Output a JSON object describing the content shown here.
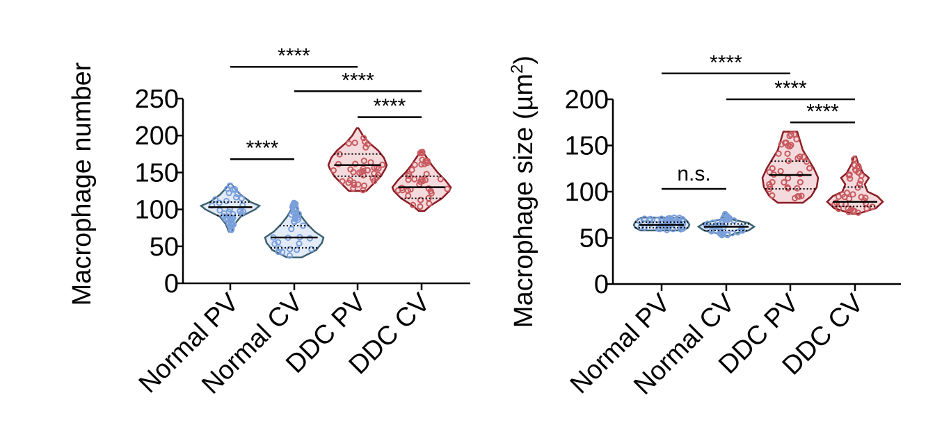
{
  "colors": {
    "normal_fill": "#aec6ec",
    "normal_edge": "#3d6170",
    "normal_point": "#7aa0dc",
    "ddc_fill": "#e0969c",
    "ddc_edge": "#8b1c23",
    "ddc_point": "#c85a60"
  },
  "chart_data": [
    {
      "type": "violin",
      "title": "",
      "ylabel": "Macrophage number",
      "ylabel_super": "",
      "ylabel_suffix": "",
      "xlabel": "",
      "ylim": [
        0,
        250
      ],
      "yticks": [
        "0",
        "50",
        "100",
        "150",
        "200",
        "250"
      ],
      "grid": false,
      "legend": "none",
      "categories": [
        "Normal PV",
        "Normal CV",
        "DDC PV",
        "DDC CV"
      ],
      "groups": [
        {
          "name": "Normal PV",
          "color": "normal",
          "min": 70,
          "max": 135,
          "q1": 92,
          "median": 103,
          "q3": 110,
          "shape": [
            [
              70,
              0.05
            ],
            [
              80,
              0.15
            ],
            [
              90,
              0.35
            ],
            [
              100,
              0.85
            ],
            [
              105,
              1.0
            ],
            [
              110,
              0.7
            ],
            [
              120,
              0.35
            ],
            [
              130,
              0.12
            ],
            [
              135,
              0.04
            ]
          ]
        },
        {
          "name": "Normal CV",
          "color": "normal",
          "min": 35,
          "max": 110,
          "q1": 48,
          "median": 62,
          "q3": 78,
          "shape": [
            [
              35,
              0.25
            ],
            [
              45,
              0.75
            ],
            [
              55,
              0.95
            ],
            [
              62,
              1.0
            ],
            [
              70,
              0.7
            ],
            [
              80,
              0.45
            ],
            [
              90,
              0.25
            ],
            [
              100,
              0.1
            ],
            [
              110,
              0.03
            ]
          ]
        },
        {
          "name": "DDC PV",
          "color": "ddc",
          "min": 125,
          "max": 210,
          "q1": 145,
          "median": 160,
          "q3": 175,
          "shape": [
            [
              125,
              0.3
            ],
            [
              135,
              0.55
            ],
            [
              145,
              0.8
            ],
            [
              155,
              0.95
            ],
            [
              160,
              1.0
            ],
            [
              170,
              0.9
            ],
            [
              180,
              0.7
            ],
            [
              190,
              0.4
            ],
            [
              200,
              0.18
            ],
            [
              210,
              0.03
            ]
          ]
        },
        {
          "name": "DDC CV",
          "color": "ddc",
          "min": 98,
          "max": 178,
          "q1": 115,
          "median": 130,
          "q3": 145,
          "shape": [
            [
              98,
              0.1
            ],
            [
              105,
              0.3
            ],
            [
              115,
              0.7
            ],
            [
              125,
              0.95
            ],
            [
              130,
              1.0
            ],
            [
              140,
              0.8
            ],
            [
              150,
              0.55
            ],
            [
              160,
              0.35
            ],
            [
              170,
              0.18
            ],
            [
              178,
              0.04
            ]
          ]
        }
      ],
      "significance": [
        {
          "from": 0,
          "to": 2,
          "label": "****",
          "y": 293
        },
        {
          "from": 1,
          "to": 3,
          "label": "****",
          "y": 260
        },
        {
          "from": 2,
          "to": 3,
          "label": "****",
          "y": 225
        },
        {
          "from": 0,
          "to": 1,
          "label": "****",
          "y": 168
        }
      ]
    },
    {
      "type": "violin",
      "title": "",
      "ylabel": "Macrophage size (µm",
      "ylabel_super": "2",
      "ylabel_suffix": ")",
      "xlabel": "",
      "ylim": [
        0,
        200
      ],
      "yticks": [
        "0",
        "50",
        "100",
        "150",
        "200"
      ],
      "grid": false,
      "legend": "none",
      "categories": [
        "Normal PV",
        "Normal CV",
        "DDC PV",
        "DDC CV"
      ],
      "groups": [
        {
          "name": "Normal PV",
          "color": "normal",
          "min": 58,
          "max": 72,
          "q1": 61,
          "median": 64,
          "q3": 67,
          "shape": [
            [
              58,
              0.75
            ],
            [
              61,
              0.95
            ],
            [
              64,
              1.0
            ],
            [
              67,
              0.95
            ],
            [
              70,
              0.85
            ],
            [
              72,
              0.7
            ]
          ]
        },
        {
          "name": "Normal CV",
          "color": "normal",
          "min": 52,
          "max": 76,
          "q1": 58,
          "median": 62,
          "q3": 65,
          "shape": [
            [
              52,
              0.1
            ],
            [
              55,
              0.35
            ],
            [
              58,
              0.8
            ],
            [
              62,
              1.0
            ],
            [
              66,
              0.8
            ],
            [
              70,
              0.2
            ],
            [
              73,
              0.1
            ],
            [
              76,
              0.05
            ]
          ]
        },
        {
          "name": "DDC PV",
          "color": "ddc",
          "min": 88,
          "max": 165,
          "q1": 103,
          "median": 118,
          "q3": 133,
          "shape": [
            [
              88,
              0.45
            ],
            [
              95,
              0.75
            ],
            [
              105,
              0.95
            ],
            [
              115,
              1.0
            ],
            [
              125,
              0.85
            ],
            [
              135,
              0.65
            ],
            [
              145,
              0.45
            ],
            [
              155,
              0.35
            ],
            [
              165,
              0.25
            ]
          ]
        },
        {
          "name": "DDC CV",
          "color": "ddc",
          "min": 76,
          "max": 138,
          "q1": 84,
          "median": 89,
          "q3": 105,
          "shape": [
            [
              76,
              0.1
            ],
            [
              82,
              0.75
            ],
            [
              89,
              1.0
            ],
            [
              95,
              0.8
            ],
            [
              100,
              0.45
            ],
            [
              108,
              0.35
            ],
            [
              115,
              0.5
            ],
            [
              120,
              0.3
            ],
            [
              130,
              0.12
            ],
            [
              138,
              0.04
            ]
          ]
        }
      ],
      "significance": [
        {
          "from": 0,
          "to": 2,
          "label": "****",
          "y": 228
        },
        {
          "from": 1,
          "to": 3,
          "label": "****",
          "y": 200
        },
        {
          "from": 2,
          "to": 3,
          "label": "****",
          "y": 175
        },
        {
          "from": 0,
          "to": 1,
          "label": "n.s.",
          "y": 103
        }
      ]
    }
  ]
}
